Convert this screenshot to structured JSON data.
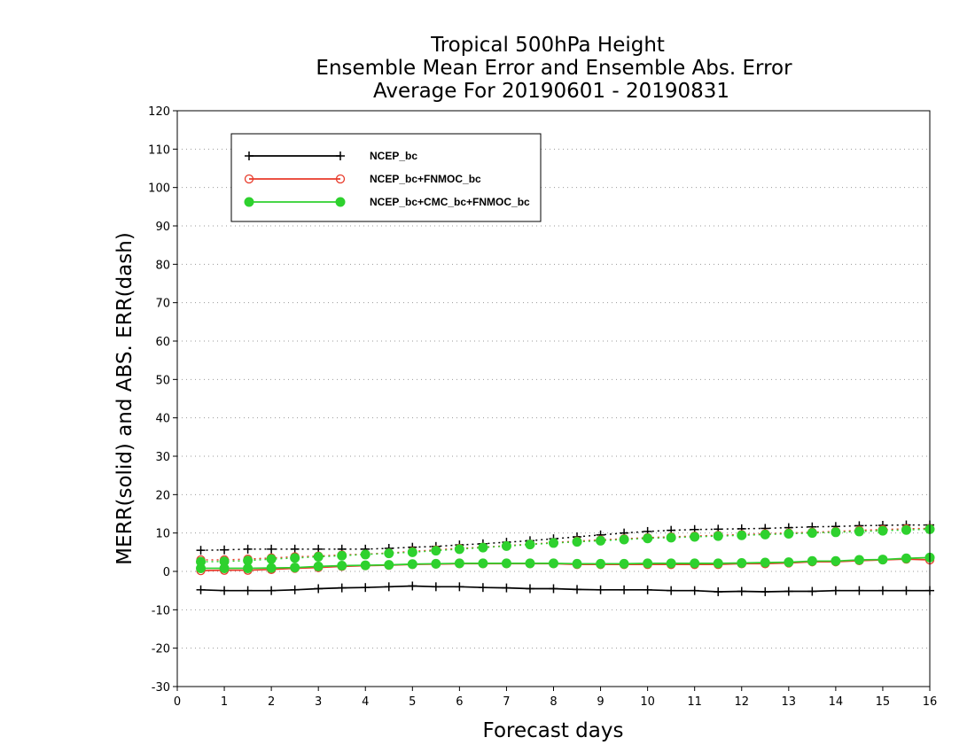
{
  "chart_data": {
    "type": "line",
    "title": [
      "Tropical 500hPa Height",
      "Ensemble Mean Error and Ensemble Abs. Error",
      "Average For 20190601 - 20190831"
    ],
    "xlabel": "Forecast days",
    "ylabel": "MERR(solid) and ABS. ERR(dash)",
    "xlim": [
      0,
      16
    ],
    "ylim": [
      -30,
      120
    ],
    "xticks": [
      0,
      1,
      2,
      3,
      4,
      5,
      6,
      7,
      8,
      9,
      10,
      11,
      12,
      13,
      14,
      15,
      16
    ],
    "yticks": [
      -30,
      -20,
      -10,
      0,
      10,
      20,
      30,
      40,
      50,
      60,
      70,
      80,
      90,
      100,
      110,
      120
    ],
    "grid": "horizontal dotted",
    "legend_position": "top-left",
    "x": [
      0.5,
      1,
      1.5,
      2,
      2.5,
      3,
      3.5,
      4,
      4.5,
      5,
      5.5,
      6,
      6.5,
      7,
      7.5,
      8,
      8.5,
      9,
      9.5,
      10,
      10.5,
      11,
      11.5,
      12,
      12.5,
      13,
      13.5,
      14,
      14.5,
      15,
      15.5,
      16
    ],
    "series": [
      {
        "name": "NCEP_bc",
        "color": "#000000",
        "marker": "plus",
        "merr": [
          -4.8,
          -5,
          -5,
          -5,
          -4.8,
          -4.5,
          -4.3,
          -4.2,
          -4,
          -3.8,
          -4,
          -4,
          -4.2,
          -4.3,
          -4.5,
          -4.5,
          -4.7,
          -4.8,
          -4.8,
          -4.8,
          -5,
          -5,
          -5.3,
          -5.2,
          -5.3,
          -5.2,
          -5.2,
          -5,
          -5,
          -5,
          -5,
          -5
        ],
        "abs_err": [
          5.5,
          5.6,
          5.8,
          5.8,
          5.8,
          5.8,
          5.8,
          5.8,
          6,
          6.3,
          6.5,
          6.9,
          7.2,
          7.6,
          8,
          8.5,
          9,
          9.5,
          10,
          10.4,
          10.7,
          10.9,
          11,
          11.1,
          11.2,
          11.4,
          11.6,
          11.7,
          11.9,
          12,
          12.1,
          12.1
        ]
      },
      {
        "name": "NCEP_bc+FNMOC_bc",
        "color": "#e83a2a",
        "marker": "open-circle",
        "merr": [
          0.2,
          0.3,
          0.3,
          0.5,
          0.8,
          1,
          1.3,
          1.5,
          1.6,
          1.8,
          1.9,
          2,
          2,
          2,
          2,
          2,
          1.8,
          1.8,
          1.8,
          1.8,
          1.8,
          1.8,
          1.8,
          2,
          2,
          2.2,
          2.5,
          2.5,
          2.8,
          3,
          3.2,
          3
        ],
        "abs_err": [
          3,
          3,
          3.2,
          3.5,
          3.8,
          4,
          4.3,
          4.5,
          4.8,
          5.2,
          5.6,
          6,
          6.3,
          6.7,
          7.1,
          7.5,
          7.9,
          8.2,
          8.5,
          8.8,
          9,
          9.2,
          9.4,
          9.6,
          9.8,
          10,
          10.2,
          10.4,
          10.7,
          10.9,
          11.1,
          11.2
        ]
      },
      {
        "name": "NCEP_bc+CMC_bc+FNMOC_bc",
        "color": "#2ed12e",
        "marker": "filled-circle",
        "merr": [
          0.8,
          0.8,
          0.8,
          0.9,
          1,
          1.3,
          1.5,
          1.6,
          1.7,
          1.9,
          2,
          2.1,
          2.1,
          2.1,
          2.1,
          2.1,
          2,
          2,
          2,
          2.1,
          2.1,
          2.1,
          2.1,
          2.2,
          2.3,
          2.4,
          2.7,
          2.7,
          3,
          3.1,
          3.4,
          3.6
        ],
        "abs_err": [
          2.5,
          2.6,
          2.8,
          3.2,
          3.5,
          3.8,
          4.1,
          4.4,
          4.7,
          5,
          5.4,
          5.8,
          6.2,
          6.6,
          7,
          7.4,
          7.7,
          8,
          8.3,
          8.6,
          8.8,
          9,
          9.2,
          9.4,
          9.6,
          9.8,
          10,
          10.2,
          10.4,
          10.6,
          10.8,
          11
        ]
      }
    ]
  }
}
